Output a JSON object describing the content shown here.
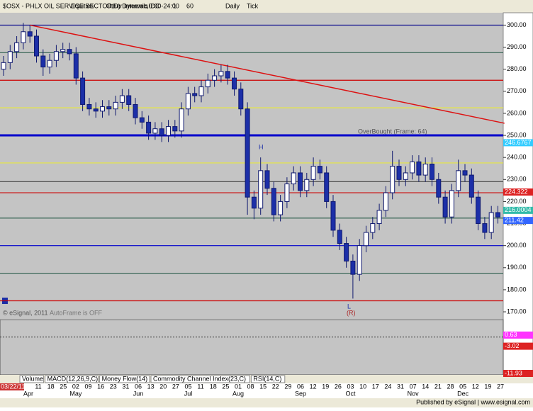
{
  "chart_data": {
    "type": "candlestick",
    "title": "$OSX - PHLX OIL SERVICE SECTOR,D) Dynamic,0:00-24:00",
    "toolbar": [
      "Equities",
      "Other Intervals",
      "IDC",
      "1",
      "60",
      "Daily",
      "Tick"
    ],
    "open": [
      280,
      283,
      288,
      292,
      297,
      295,
      286,
      281,
      284,
      288,
      289,
      287,
      276,
      264,
      262,
      261,
      263,
      262,
      265,
      268,
      264,
      258,
      256,
      251,
      253,
      250,
      254,
      252,
      262,
      269,
      268,
      272,
      275,
      277,
      279,
      276,
      271,
      262,
      222,
      217,
      234,
      226,
      214,
      220,
      228,
      233,
      225,
      230,
      236,
      233,
      220,
      207,
      201,
      193,
      187,
      200,
      206,
      210,
      216,
      224,
      236,
      230,
      233,
      238,
      232,
      237,
      230,
      222,
      213,
      225,
      234,
      232,
      222,
      210,
      206,
      215
    ],
    "high": [
      286,
      291,
      295,
      301,
      300,
      298,
      289,
      287,
      291,
      292,
      292,
      290,
      279,
      267,
      265,
      266,
      266,
      268,
      271,
      271,
      267,
      261,
      259,
      256,
      256,
      257,
      257,
      265,
      272,
      272,
      275,
      278,
      280,
      282,
      282,
      279,
      274,
      265,
      225,
      240,
      237,
      229,
      223,
      231,
      236,
      236,
      233,
      240,
      239,
      236,
      223,
      210,
      204,
      196,
      203,
      209,
      213,
      219,
      227,
      243,
      239,
      236,
      241,
      241,
      240,
      240,
      233,
      225,
      228,
      239,
      237,
      235,
      225,
      213,
      218,
      218
    ],
    "low": [
      277,
      280,
      285,
      289,
      292,
      283,
      277,
      278,
      281,
      285,
      284,
      273,
      261,
      259,
      258,
      258,
      259,
      259,
      262,
      261,
      255,
      253,
      248,
      248,
      247,
      247,
      249,
      249,
      259,
      265,
      265,
      269,
      272,
      274,
      273,
      268,
      259,
      214,
      212,
      214,
      223,
      211,
      211,
      217,
      225,
      222,
      222,
      227,
      230,
      217,
      204,
      198,
      190,
      176,
      184,
      197,
      203,
      207,
      213,
      221,
      227,
      227,
      230,
      229,
      229,
      227,
      219,
      210,
      210,
      222,
      229,
      219,
      207,
      203,
      203,
      210
    ],
    "close": [
      283,
      288,
      292,
      297,
      295,
      286,
      281,
      284,
      288,
      289,
      287,
      276,
      264,
      262,
      261,
      263,
      262,
      265,
      268,
      264,
      258,
      256,
      251,
      253,
      250,
      254,
      252,
      262,
      269,
      268,
      272,
      275,
      277,
      279,
      276,
      271,
      262,
      222,
      217,
      234,
      226,
      214,
      220,
      228,
      233,
      225,
      230,
      236,
      233,
      220,
      207,
      201,
      193,
      187,
      200,
      206,
      210,
      216,
      224,
      236,
      230,
      233,
      238,
      232,
      237,
      230,
      222,
      213,
      225,
      234,
      232,
      222,
      210,
      206,
      215,
      213
    ],
    "up_color": "#ffffff",
    "down_color": "#1c2fa8",
    "wick_color": "#101a70",
    "ylim": [
      166.8,
      305.6
    ],
    "yticks": [
      {
        "value": 300,
        "label": "300.00"
      },
      {
        "value": 290,
        "label": "290.00"
      },
      {
        "value": 280,
        "label": "280.00"
      },
      {
        "value": 270,
        "label": "270.00"
      },
      {
        "value": 260,
        "label": "260.00"
      },
      {
        "value": 250,
        "label": "250.00"
      },
      {
        "value": 240,
        "label": "240.00"
      },
      {
        "value": 230,
        "label": "230.00"
      },
      {
        "value": 220,
        "label": "220.00"
      },
      {
        "value": 210,
        "label": "210.00"
      },
      {
        "value": 200,
        "label": "200.00"
      },
      {
        "value": 190,
        "label": "190.00"
      },
      {
        "value": 180,
        "label": "180.00"
      },
      {
        "value": 170,
        "label": "170.00"
      }
    ],
    "levels": [
      {
        "value": 300,
        "color": "#00008b"
      },
      {
        "value": 287.5,
        "color": "#2f5f4f"
      },
      {
        "value": 275,
        "color": "#cc0000"
      },
      {
        "value": 262.5,
        "color": "#e8e840"
      },
      {
        "value": 250,
        "color": "#0000cc"
      },
      {
        "value": 237.5,
        "color": "#e8e840"
      },
      {
        "value": 229,
        "color": "#505050"
      },
      {
        "value": 224,
        "color": "#cc2020"
      },
      {
        "value": 212.5,
        "color": "#2f5f4f"
      },
      {
        "value": 200,
        "color": "#0000cc"
      },
      {
        "value": 187.5,
        "color": "#2f5f4f"
      },
      {
        "value": 175,
        "color": "#cc0000"
      }
    ],
    "trendline": {
      "start_bar": 4,
      "start_value": 300,
      "end_bar": 76,
      "end_value": 255.5,
      "color": "#dd1111"
    },
    "price_tags": [
      {
        "value": 246.6767,
        "label": "246.6767",
        "color": "#33ccff"
      },
      {
        "value": 224.322,
        "label": "224.322",
        "color": "#dd2222"
      },
      {
        "value": 216.0004,
        "label": "216.0004",
        "color": "#33bbaa"
      },
      {
        "value": 211.42,
        "label": "211.42",
        "color": "#3366ff"
      }
    ],
    "annotations": {
      "overbought": "OverBought (Frame: 64)",
      "high_marker": "H",
      "low_marker": "L",
      "low_note": "(R)",
      "autoframe": "AutoFrame is OFF",
      "copyright": "© eSignal, 2011"
    },
    "lower_panel": {
      "ylim": [
        -12.4,
        5.7
      ],
      "zero_line": 0,
      "tags": [
        {
          "value": 0.63,
          "label": "0.63",
          "color": "#ff33ff"
        },
        {
          "value": -3.02,
          "label": "-3.02",
          "color": "#dd2222"
        },
        {
          "value": -11.93,
          "label": "-11.93",
          "color": "#dd2222"
        }
      ]
    },
    "tabs": [
      "Volume",
      "MACD(12,26,9,C)",
      "Money Flow(14)",
      "Commodity Channel Index(23,C)",
      "RSI(14,C)"
    ],
    "start_date": "03/22/11",
    "x_ticks": [
      "11",
      "18",
      "25",
      "02",
      "09",
      "16",
      "23",
      "31",
      "06",
      "13",
      "20",
      "27",
      "05",
      "11",
      "18",
      "25",
      "01",
      "08",
      "15",
      "22",
      "29",
      "06",
      "12",
      "19",
      "26",
      "03",
      "10",
      "17",
      "24",
      "31",
      "07",
      "14",
      "21",
      "28",
      "05",
      "12",
      "19",
      "27"
    ],
    "months": [
      "Apr",
      "May",
      "Jun",
      "Jul",
      "Aug",
      "Sep",
      "Oct",
      "Nov",
      "Dec"
    ],
    "footer": "Published by eSignal | www.esignal.com"
  }
}
